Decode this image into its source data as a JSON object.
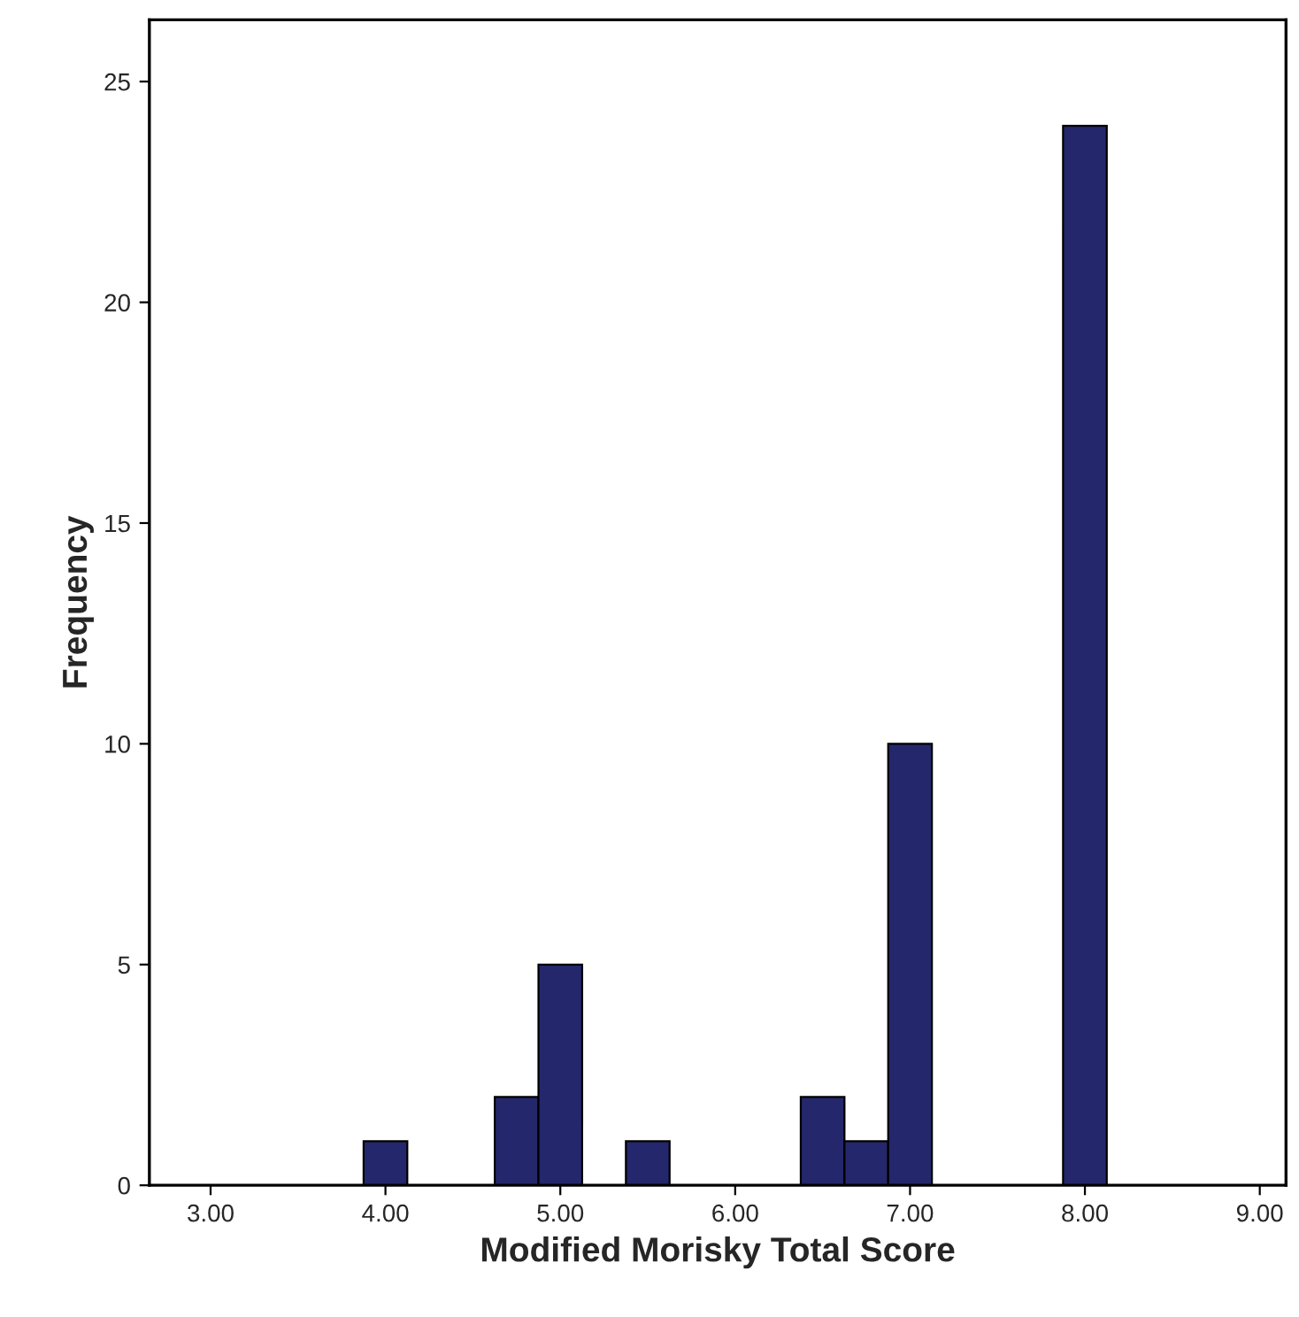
{
  "chart_data": {
    "type": "histogram",
    "xlabel": "Modified Morisky Total Score",
    "ylabel": "Frequency",
    "bins": [
      3.875,
      4.125,
      4.375,
      4.625,
      4.875,
      5.125,
      5.375,
      5.625,
      5.875,
      6.125,
      6.375,
      6.625,
      6.875,
      7.125,
      7.375,
      7.625,
      7.875,
      8.125
    ],
    "values": [
      1,
      0,
      0,
      2,
      5,
      0,
      1,
      0,
      0,
      0,
      2,
      1,
      10,
      0,
      0,
      0,
      24
    ],
    "color": "#24276b",
    "xlim": [
      2.65,
      9.15
    ],
    "ylim": [
      0,
      26.4
    ],
    "xticks": [
      {
        "value": 3,
        "label": "3.00"
      },
      {
        "value": 4,
        "label": "4.00"
      },
      {
        "value": 5,
        "label": "5.00"
      },
      {
        "value": 6,
        "label": "6.00"
      },
      {
        "value": 7,
        "label": "7.00"
      },
      {
        "value": 8,
        "label": "8.00"
      },
      {
        "value": 9,
        "label": "9.00"
      }
    ],
    "yticks": [
      0,
      5,
      10,
      15,
      20,
      25
    ],
    "grid": false
  }
}
